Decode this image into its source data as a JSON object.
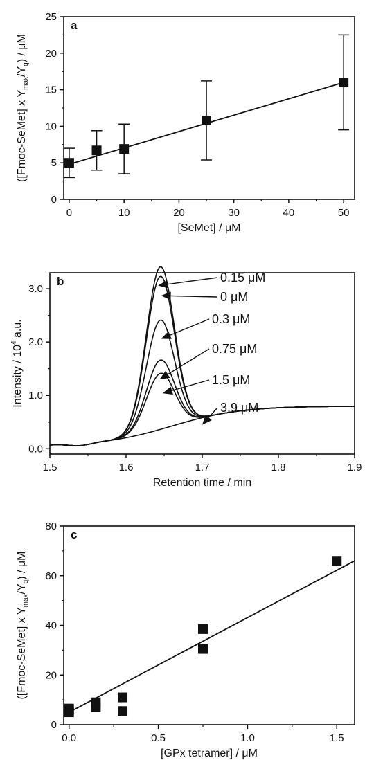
{
  "chart_data": [
    {
      "panel": "a",
      "type": "scatter",
      "xlabel": "[SeMet] / μM",
      "ylabel_parts": [
        "([Fmoc-SeMet] x Y",
        "max",
        "/Y",
        "q",
        ") / μM"
      ],
      "xlim": [
        -1,
        52
      ],
      "ylim": [
        0,
        25
      ],
      "xticks": [
        0,
        10,
        20,
        30,
        40,
        50
      ],
      "yticks": [
        0,
        5,
        10,
        15,
        20,
        25
      ],
      "points": [
        {
          "x": 0,
          "y": 5.0,
          "err": 2.0
        },
        {
          "x": 5,
          "y": 6.7,
          "err": 2.7
        },
        {
          "x": 10,
          "y": 6.9,
          "err": 3.4
        },
        {
          "x": 25,
          "y": 10.8,
          "err": 5.4
        },
        {
          "x": 50,
          "y": 16.0,
          "err": 6.5
        }
      ],
      "fit": [
        [
          0,
          4.8
        ],
        [
          50,
          16.0
        ]
      ]
    },
    {
      "panel": "b",
      "type": "line",
      "xlabel": "Retention time / min",
      "ylabel_parts": [
        "Intensity / 10",
        "4",
        " a.u."
      ],
      "xlim": [
        1.5,
        1.9
      ],
      "ylim": [
        -0.1,
        3.3
      ],
      "xticks": [
        1.5,
        1.6,
        1.7,
        1.8,
        1.9
      ],
      "yticks": [
        0.0,
        1.0,
        2.0,
        3.0
      ],
      "ytick_labels": [
        "0.0",
        "1.0",
        "2.0",
        "3.0"
      ],
      "series": [
        {
          "name": "0.15 μM",
          "peak": 3.05
        },
        {
          "name": "0 μM",
          "peak": 2.87
        },
        {
          "name": "0.3 μM",
          "peak": 2.05
        },
        {
          "name": "0.75 μM",
          "peak": 1.3
        },
        {
          "name": "1.5 μM",
          "peak": 1.05
        },
        {
          "name": "3.9 μM",
          "peak": 0
        }
      ],
      "annotations": [
        {
          "label": "0.15 μM",
          "x": 1.642,
          "y": 3.06
        },
        {
          "label": "0 μM",
          "x": 1.646,
          "y": 2.87
        },
        {
          "label": "0.3 μM",
          "x": 1.646,
          "y": 2.06
        },
        {
          "label": "0.75 μM",
          "x": 1.644,
          "y": 1.3
        },
        {
          "label": "1.5 μM",
          "x": 1.648,
          "y": 1.04
        },
        {
          "label": "3.9 μM",
          "x": 1.7,
          "y": 0.45
        }
      ]
    },
    {
      "panel": "c",
      "type": "scatter",
      "xlabel": "[GPx tetramer] / μM",
      "ylabel_parts": [
        "([Fmoc-SeMet] x Y",
        "max",
        "/Y",
        "q",
        ") / μM"
      ],
      "xlim": [
        -0.03,
        1.6
      ],
      "ylim": [
        0,
        80
      ],
      "xticks": [
        0.0,
        0.5,
        1.0,
        1.5
      ],
      "xtick_labels": [
        "0.0",
        "0.5",
        "1.0",
        "1.5"
      ],
      "yticks": [
        0,
        20,
        40,
        60,
        80
      ],
      "points": [
        {
          "x": 0,
          "y": 5.0
        },
        {
          "x": 0,
          "y": 6.5
        },
        {
          "x": 0.15,
          "y": 7.0
        },
        {
          "x": 0.15,
          "y": 9.0
        },
        {
          "x": 0.3,
          "y": 5.5
        },
        {
          "x": 0.3,
          "y": 11.0
        },
        {
          "x": 0.75,
          "y": 30.5
        },
        {
          "x": 0.75,
          "y": 38.5
        },
        {
          "x": 1.5,
          "y": 66.0
        }
      ],
      "fit": [
        [
          0,
          5.0
        ],
        [
          1.6,
          66.0
        ]
      ]
    }
  ]
}
